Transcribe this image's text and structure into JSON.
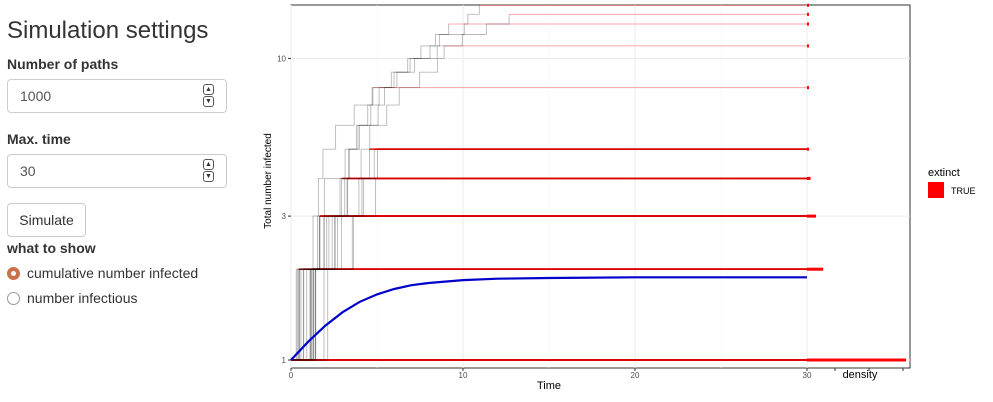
{
  "sidebar": {
    "title": "Simulation settings",
    "paths_label": "Number of paths",
    "paths_value": "1000",
    "maxtime_label": "Max. time",
    "maxtime_value": "30",
    "simulate_label": "Simulate",
    "show_label": "what to show",
    "options": [
      {
        "label": "cumulative number infected",
        "selected": true
      },
      {
        "label": "number infectious",
        "selected": false
      }
    ]
  },
  "chart_data": {
    "type": "line",
    "xlabel": "Time",
    "ylabel": "Total number infected",
    "x_ticks": [
      0,
      10,
      20,
      30
    ],
    "y_ticks": [
      1,
      3,
      10
    ],
    "y_scale": "log",
    "xlim": [
      0,
      30
    ],
    "density_label": "density",
    "legend": {
      "title": "extinct",
      "entries": [
        {
          "label": "TRUE",
          "color": "#ff0000"
        }
      ]
    },
    "mean_curve_color": "#0000cc",
    "final_sizes": [
      1,
      2,
      3,
      4,
      5,
      8,
      11,
      13,
      14,
      15
    ],
    "density_values": [
      0.55,
      0.09,
      0.05,
      0.02,
      0.012,
      0.01,
      0.01,
      0.01,
      0.01,
      0.01
    ],
    "mean_curve": {
      "x": [
        0,
        1,
        2,
        3,
        4,
        5,
        6,
        7,
        8,
        10,
        12,
        15,
        20,
        25,
        30
      ],
      "y": [
        1,
        1.15,
        1.3,
        1.44,
        1.56,
        1.65,
        1.72,
        1.77,
        1.8,
        1.84,
        1.86,
        1.87,
        1.88,
        1.88,
        1.88
      ]
    }
  }
}
